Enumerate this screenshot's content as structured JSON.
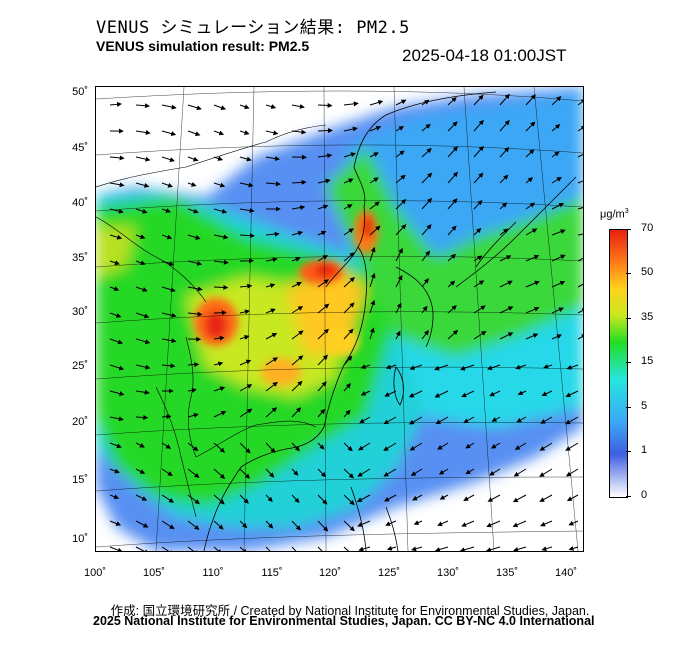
{
  "title_ja": "VENUS シミュレーション結果: PM2.5",
  "title_en": "VENUS simulation result: PM2.5",
  "timestamp": "2025-04-18 01:00JST",
  "lat_labels": [
    "50˚",
    "45˚",
    "40˚",
    "35˚",
    "30˚",
    "25˚",
    "20˚",
    "15˚",
    "10˚"
  ],
  "lon_labels": [
    "100˚",
    "105˚",
    "110˚",
    "115˚",
    "120˚",
    "125˚",
    "130˚",
    "135˚",
    "140˚"
  ],
  "colorbar": {
    "unit": "μg/m",
    "unit_sup": "3",
    "ticks": [
      "70",
      "50",
      "35",
      "15",
      "5",
      "1",
      "0"
    ]
  },
  "footer_credit": "作成: 国立環境研究所 / Created by National Institute for Environmental Studies, Japan.",
  "footer_license": "2025 National Institute for Environmental Studies, Japan. CC BY-NC 4.0 International"
}
